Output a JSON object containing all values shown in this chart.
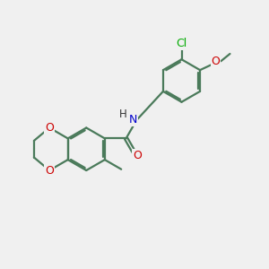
{
  "background_color": "#f0f0f0",
  "bond_color": "#4a7a5a",
  "atom_colors": {
    "O": "#cc0000",
    "N": "#0000cc",
    "Cl": "#00aa00",
    "C_label": "#333333"
  },
  "figsize": [
    3.0,
    3.0
  ],
  "dpi": 100,
  "bond_lw": 1.6,
  "font_size": 9
}
